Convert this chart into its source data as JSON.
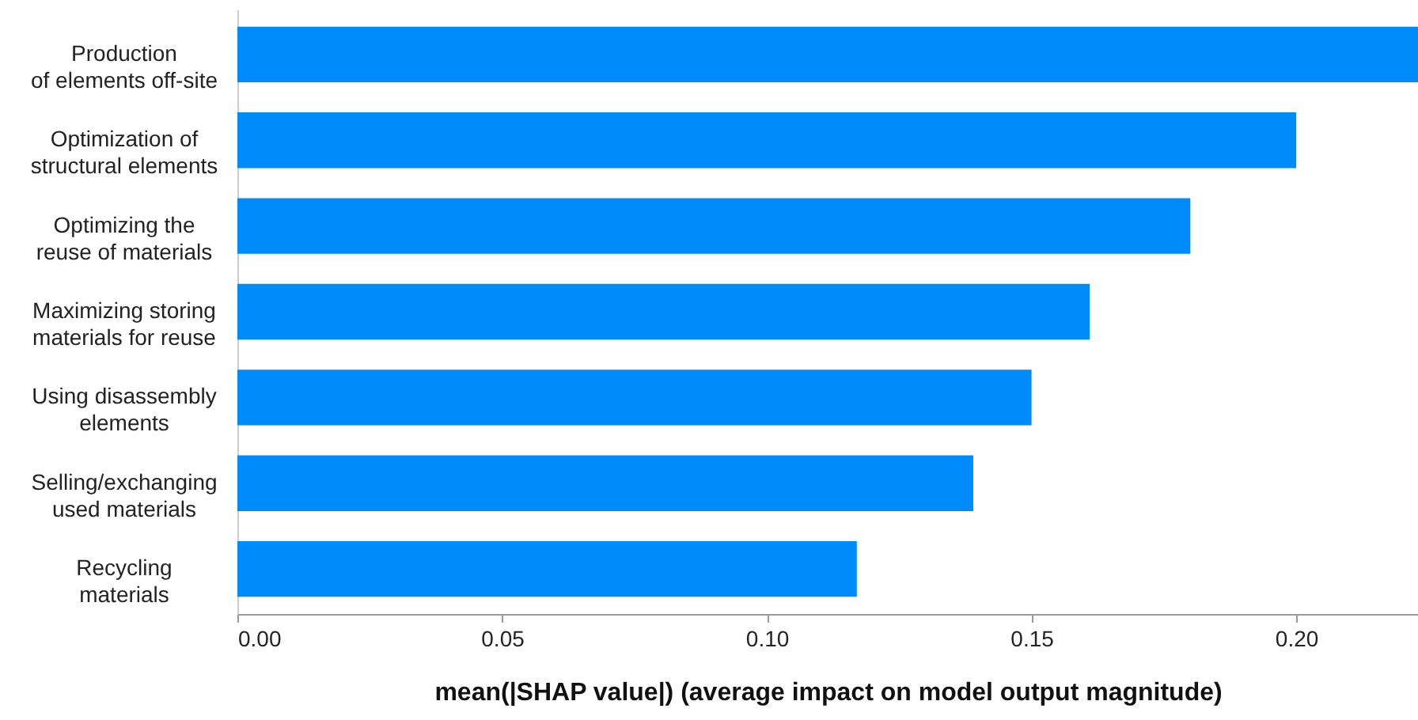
{
  "chart_data": {
    "type": "bar",
    "orientation": "horizontal",
    "xlabel": "mean(|SHAP value|) (average impact on model output magnitude)",
    "categories": [
      "Production\nof elements off-site",
      "Optimization of\nstructural elements",
      "Optimizing the\nreuse of materials",
      "Maximizing storing\nmaterials for reuse",
      "Using disassembly\nelements",
      "Selling/exchanging\nused materials",
      "Recycling\nmaterials"
    ],
    "values": [
      0.223,
      0.2,
      0.18,
      0.161,
      0.15,
      0.139,
      0.117
    ],
    "color": "#008bfb",
    "xlim": [
      0,
      0.223
    ],
    "xticks": [
      {
        "value": 0,
        "label": "0.00"
      },
      {
        "value": 0.05,
        "label": "0.05"
      },
      {
        "value": 0.1,
        "label": "0.10"
      },
      {
        "value": 0.15,
        "label": "0.15"
      },
      {
        "value": 0.2,
        "label": "0.20"
      }
    ],
    "grid": false
  }
}
